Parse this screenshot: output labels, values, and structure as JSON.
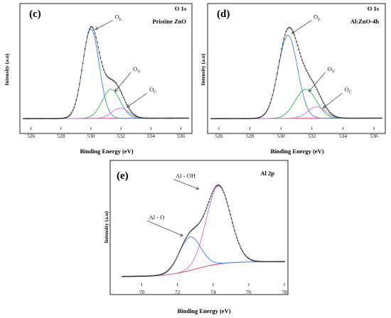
{
  "chart_data": [
    {
      "type": "line",
      "panel": "(c)",
      "title": "O 1s",
      "sample": "Pristine ZnO",
      "xlabel": "Binding Energy (eV)",
      "ylabel": "Intensity (a.u)",
      "xlim": [
        525.5,
        536.5
      ],
      "ylim": [
        0,
        1.08
      ],
      "xticks": [
        526,
        528,
        530,
        532,
        534,
        536
      ],
      "yticks": [],
      "colors": {
        "background": "#e23b3b",
        "ol": "#3f80d8",
        "ov": "#2fae5e",
        "oc": "#c46fd4",
        "envelope": "#6b6b6b",
        "dots": "#3a3a3a"
      },
      "peaks": [
        {
          "name": "OL",
          "center": 530.0,
          "height": 0.86,
          "sigma": 0.55,
          "color": "#3f80d8"
        },
        {
          "name": "OV",
          "center": 531.35,
          "height": 0.28,
          "sigma": 0.6,
          "color": "#2fae5e"
        },
        {
          "name": "OC",
          "center": 531.95,
          "height": 0.1,
          "sigma": 0.55,
          "color": "#c46fd4"
        }
      ],
      "baseline": {
        "left": 0.04,
        "right": 0.045
      },
      "annotations": [
        {
          "label": "O",
          "sub": "L",
          "text_x": 531.6,
          "text_y": 1.0,
          "arrow_x": 530.3,
          "arrow_y": 0.9
        },
        {
          "label": "O",
          "sub": "V",
          "text_x": 532.8,
          "text_y": 0.5,
          "arrow_x": 531.6,
          "arrow_y": 0.3
        },
        {
          "label": "O",
          "sub": "C",
          "text_x": 533.9,
          "text_y": 0.3,
          "arrow_x": 532.4,
          "arrow_y": 0.15
        }
      ]
    },
    {
      "type": "line",
      "panel": "(d)",
      "title": "O 1s",
      "sample": "Al:ZnO-4h",
      "xlabel": "Binding Energy (eV)",
      "ylabel": "Intensity (a.u)",
      "xlim": [
        525.5,
        536.5
      ],
      "ylim": [
        0,
        1.08
      ],
      "xticks": [
        526,
        528,
        530,
        532,
        534,
        536
      ],
      "yticks": [],
      "colors": {
        "background": "#e23b3b",
        "ol": "#3f80d8",
        "ov": "#2fae5e",
        "oc": "#c46fd4",
        "envelope": "#6b6b6b",
        "dots": "#3a3a3a"
      },
      "peaks": [
        {
          "name": "OL",
          "center": 530.45,
          "height": 0.8,
          "sigma": 0.62,
          "color": "#3f80d8"
        },
        {
          "name": "OV",
          "center": 531.6,
          "height": 0.28,
          "sigma": 0.68,
          "color": "#2fae5e"
        },
        {
          "name": "OC",
          "center": 532.3,
          "height": 0.11,
          "sigma": 0.58,
          "color": "#c46fd4"
        }
      ],
      "baseline": {
        "left": 0.04,
        "right": 0.045
      },
      "annotations": [
        {
          "label": "O",
          "sub": "L",
          "text_x": 532.1,
          "text_y": 1.0,
          "arrow_x": 530.7,
          "arrow_y": 0.86
        },
        {
          "label": "O",
          "sub": "V",
          "text_x": 533.0,
          "text_y": 0.5,
          "arrow_x": 531.8,
          "arrow_y": 0.3
        },
        {
          "label": "O",
          "sub": "C",
          "text_x": 534.1,
          "text_y": 0.3,
          "arrow_x": 532.7,
          "arrow_y": 0.14
        }
      ]
    },
    {
      "type": "line",
      "panel": "(e)",
      "title": "Al 2p",
      "sample": "",
      "xlabel": "Binding Energy (eV)",
      "ylabel": "Intensity (a.u)",
      "xlim": [
        68.9,
        78
      ],
      "ylim": [
        0,
        1.0
      ],
      "xticks": [
        70,
        72,
        74,
        76,
        78
      ],
      "yticks": [],
      "colors": {
        "background": "#e23b3b",
        "al_o": "#3f80d8",
        "al_oh": "#c46fd4",
        "envelope": "#6b6b6b",
        "dots": "#3a3a3a"
      },
      "peaks": [
        {
          "name": "Al - O",
          "center": 72.7,
          "height": 0.3,
          "sigma": 0.6,
          "color": "#3f80d8"
        },
        {
          "name": "Al - OH",
          "center": 74.3,
          "height": 0.7,
          "sigma": 0.68,
          "color": "#c46fd4"
        }
      ],
      "baseline": {
        "left": 0.015,
        "right": 0.15,
        "center": 73.0,
        "width": 0.8
      },
      "annotations": [
        {
          "label": "Al - O",
          "sub": "",
          "text_x": 70.4,
          "text_y": 0.53,
          "arrow_x": 72.3,
          "arrow_y": 0.38
        },
        {
          "label": "Al - OH",
          "sub": "",
          "text_x": 71.9,
          "text_y": 0.9,
          "arrow_x": 73.2,
          "arrow_y": 0.8
        }
      ]
    }
  ]
}
